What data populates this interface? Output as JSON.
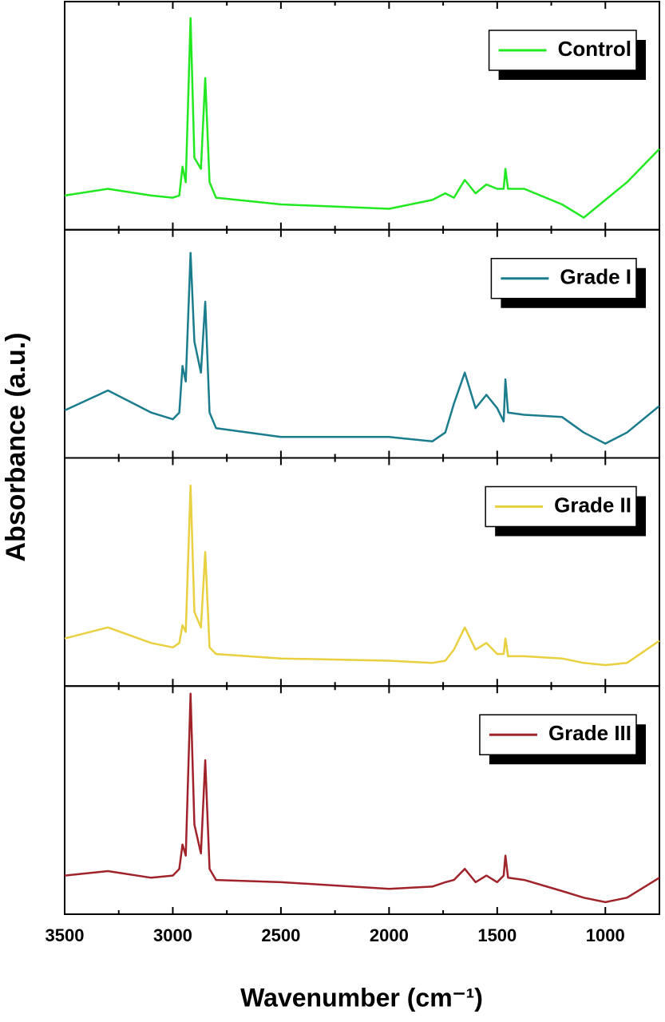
{
  "chart_data": {
    "type": "line",
    "x_label": "Wavenumber (cm⁻¹)",
    "y_label": "Absorbance (a.u.)",
    "xlim": [
      3500,
      750
    ],
    "xticks": [
      3500,
      3000,
      2500,
      2000,
      1500,
      1000
    ],
    "xminorticks": [
      3250,
      2750,
      2250,
      1750,
      1250,
      750
    ],
    "ylim": [
      0,
      1
    ],
    "x": [
      3500,
      3300,
      3100,
      3000,
      2970,
      2955,
      2940,
      2918,
      2900,
      2870,
      2850,
      2830,
      2800,
      2500,
      2000,
      1800,
      1740,
      1700,
      1650,
      1600,
      1550,
      1500,
      1470,
      1462,
      1450,
      1375,
      1200,
      1100,
      1000,
      900,
      750
    ],
    "series": [
      {
        "name": "Control",
        "color": "#22e822",
        "values": [
          0.14,
          0.17,
          0.14,
          0.13,
          0.14,
          0.27,
          0.2,
          0.94,
          0.31,
          0.26,
          0.67,
          0.2,
          0.13,
          0.1,
          0.08,
          0.12,
          0.15,
          0.13,
          0.21,
          0.15,
          0.19,
          0.17,
          0.17,
          0.26,
          0.17,
          0.17,
          0.1,
          0.04,
          0.12,
          0.2,
          0.35
        ]
      },
      {
        "name": "Grade I",
        "color": "#1a7c8c",
        "values": [
          0.2,
          0.29,
          0.19,
          0.16,
          0.19,
          0.4,
          0.33,
          0.91,
          0.51,
          0.37,
          0.69,
          0.19,
          0.12,
          0.08,
          0.08,
          0.06,
          0.1,
          0.23,
          0.37,
          0.21,
          0.27,
          0.21,
          0.15,
          0.34,
          0.19,
          0.18,
          0.17,
          0.1,
          0.05,
          0.1,
          0.22
        ]
      },
      {
        "name": "Grade II",
        "color": "#e8d040",
        "values": [
          0.2,
          0.25,
          0.18,
          0.16,
          0.18,
          0.26,
          0.23,
          0.89,
          0.32,
          0.25,
          0.59,
          0.16,
          0.13,
          0.11,
          0.1,
          0.09,
          0.1,
          0.15,
          0.25,
          0.15,
          0.18,
          0.13,
          0.13,
          0.2,
          0.12,
          0.12,
          0.11,
          0.09,
          0.08,
          0.09,
          0.19
        ]
      },
      {
        "name": "Grade III",
        "color": "#a0232a",
        "values": [
          0.16,
          0.18,
          0.15,
          0.16,
          0.19,
          0.3,
          0.25,
          0.98,
          0.39,
          0.26,
          0.68,
          0.19,
          0.14,
          0.13,
          0.1,
          0.11,
          0.13,
          0.14,
          0.19,
          0.13,
          0.16,
          0.13,
          0.16,
          0.25,
          0.15,
          0.14,
          0.09,
          0.06,
          0.04,
          0.06,
          0.15
        ]
      }
    ]
  }
}
